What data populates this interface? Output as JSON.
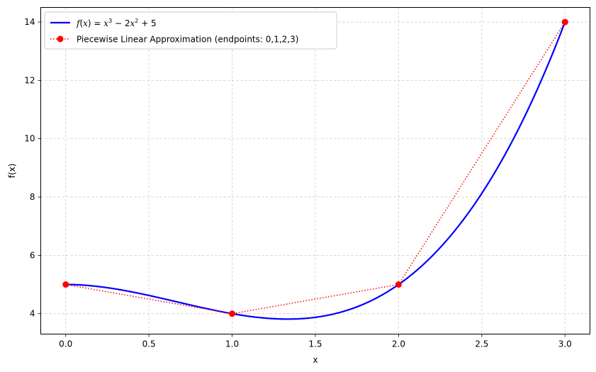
{
  "chart_data": {
    "type": "line",
    "xlabel": "x",
    "ylabel": "f(x)",
    "xlim": [
      -0.15,
      3.15
    ],
    "ylim": [
      3.3,
      14.5
    ],
    "xticks": [
      0.0,
      0.5,
      1.0,
      1.5,
      2.0,
      2.5,
      3.0
    ],
    "xtick_labels": [
      "0.0",
      "0.5",
      "1.0",
      "1.5",
      "2.0",
      "2.5",
      "3.0"
    ],
    "yticks": [
      4,
      6,
      8,
      10,
      12,
      14
    ],
    "ytick_labels": [
      "4",
      "6",
      "8",
      "10",
      "12",
      "14"
    ],
    "grid": true,
    "legend_position": "top-left",
    "series": [
      {
        "name": "f(x) = x^3 - 2x^2 + 5",
        "style": "solid",
        "color": "#0000ff",
        "expression": "x^3 - 2x^2 + 5",
        "x_range": [
          0,
          3
        ],
        "x": [
          0.0,
          0.25,
          0.5,
          0.75,
          1.0,
          1.25,
          1.333,
          1.5,
          1.75,
          2.0,
          2.25,
          2.5,
          2.75,
          3.0
        ],
        "y": [
          5.0,
          4.89,
          4.63,
          4.3,
          4.0,
          3.83,
          3.81,
          3.88,
          4.23,
          5.0,
          6.27,
          8.13,
          10.67,
          14.0
        ]
      },
      {
        "name": "Piecewise Linear Approximation (endpoints: 0,1,2,3)",
        "style": "dotted",
        "color": "#ff0000",
        "marker": "circle",
        "x": [
          0,
          1,
          2,
          3
        ],
        "y": [
          5,
          4,
          5,
          14
        ]
      }
    ]
  },
  "legend": {
    "series1_label": "Piecewise Linear Approximation (endpoints: 0,1,2,3)"
  }
}
